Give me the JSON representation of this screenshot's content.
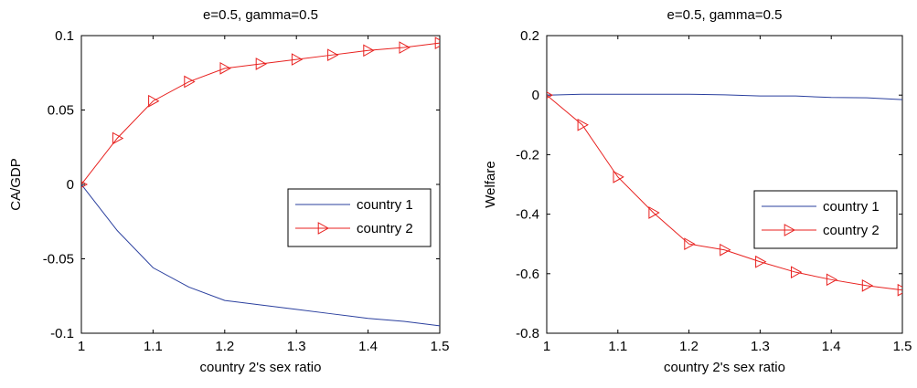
{
  "chart_data": [
    {
      "type": "line",
      "title": "e=0.5, gamma=0.5",
      "xlabel": "country 2's sex ratio",
      "ylabel": "CA/GDP",
      "xlim": [
        1,
        1.5
      ],
      "ylim": [
        -0.1,
        0.1
      ],
      "xticks": [
        1,
        1.1,
        1.2,
        1.3,
        1.4,
        1.5
      ],
      "xtick_labels": [
        "1",
        "1.1",
        "1.2",
        "1.3",
        "1.4",
        "1.5"
      ],
      "yticks": [
        -0.1,
        -0.05,
        0,
        0.05,
        0.1
      ],
      "ytick_labels": [
        "-0.1",
        "-0.05",
        "0",
        "0.05",
        "0.1"
      ],
      "grid": false,
      "legend_position": "right",
      "x": [
        1,
        1.05,
        1.1,
        1.15,
        1.2,
        1.25,
        1.3,
        1.35,
        1.4,
        1.45,
        1.5
      ],
      "series": [
        {
          "name": "country 1",
          "color": "#2a3f9e",
          "marker": "none",
          "values": [
            0,
            -0.031,
            -0.056,
            -0.069,
            -0.078,
            -0.081,
            -0.084,
            -0.087,
            -0.09,
            -0.092,
            -0.095
          ]
        },
        {
          "name": "country 2",
          "color": "#e8211f",
          "marker": "triangle-right",
          "values": [
            0,
            0.031,
            0.056,
            0.069,
            0.078,
            0.081,
            0.084,
            0.087,
            0.09,
            0.092,
            0.095
          ]
        }
      ]
    },
    {
      "type": "line",
      "title": "e=0.5, gamma=0.5",
      "xlabel": "country 2's sex ratio",
      "ylabel": "Welfare",
      "xlim": [
        1,
        1.5
      ],
      "ylim": [
        -0.8,
        0.2
      ],
      "xticks": [
        1,
        1.1,
        1.2,
        1.3,
        1.4,
        1.5
      ],
      "xtick_labels": [
        "1",
        "1.1",
        "1.2",
        "1.3",
        "1.4",
        "1.5"
      ],
      "yticks": [
        -0.8,
        -0.6,
        -0.4,
        -0.2,
        0,
        0.2
      ],
      "ytick_labels": [
        "-0.8",
        "-0.6",
        "-0.4",
        "-0.2",
        "0",
        "0.2"
      ],
      "grid": false,
      "legend_position": "right",
      "x": [
        1,
        1.05,
        1.1,
        1.15,
        1.2,
        1.25,
        1.3,
        1.35,
        1.4,
        1.45,
        1.5
      ],
      "series": [
        {
          "name": "country 1",
          "color": "#2a3f9e",
          "marker": "none",
          "values": [
            0,
            0.003,
            0.003,
            0.003,
            0.003,
            0.001,
            -0.003,
            -0.003,
            -0.008,
            -0.009,
            -0.015
          ]
        },
        {
          "name": "country 2",
          "color": "#e8211f",
          "marker": "triangle-right",
          "values": [
            0,
            -0.1,
            -0.275,
            -0.395,
            -0.5,
            -0.52,
            -0.56,
            -0.595,
            -0.62,
            -0.64,
            -0.655
          ]
        }
      ]
    }
  ]
}
